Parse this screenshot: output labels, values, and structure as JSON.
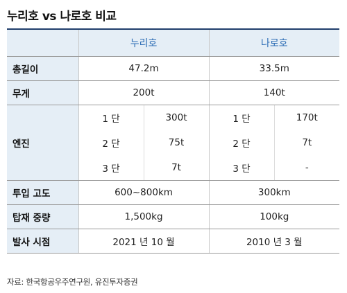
{
  "title": "누리호 vs 나로호 비교",
  "columns": [
    "누리호",
    "나로호"
  ],
  "rows": {
    "length": {
      "label": "총길이",
      "nuri": "47.2m",
      "naro": "33.5m"
    },
    "weight": {
      "label": "무게",
      "nuri": "200t",
      "naro": "140t"
    },
    "engine": {
      "label": "엔진",
      "stages": [
        {
          "nuri_stage": "1 단",
          "nuri_value": "300t",
          "naro_stage": "1 단",
          "naro_value": "170t"
        },
        {
          "nuri_stage": "2 단",
          "nuri_value": "75t",
          "naro_stage": "2 단",
          "naro_value": "7t"
        },
        {
          "nuri_stage": "3 단",
          "nuri_value": "7t",
          "naro_stage": "3 단",
          "naro_value": "-"
        }
      ]
    },
    "altitude": {
      "label": "투입 고도",
      "nuri": "600~800km",
      "naro": "300km"
    },
    "payload": {
      "label": "탑재 중량",
      "nuri": "1,500kg",
      "naro": "100kg"
    },
    "launch": {
      "label": "발사 시점",
      "nuri": "2021 년 10 월",
      "naro": "2010 년 3 월"
    }
  },
  "source": "자료: 한국항공우주연구원, 유진투자증권"
}
